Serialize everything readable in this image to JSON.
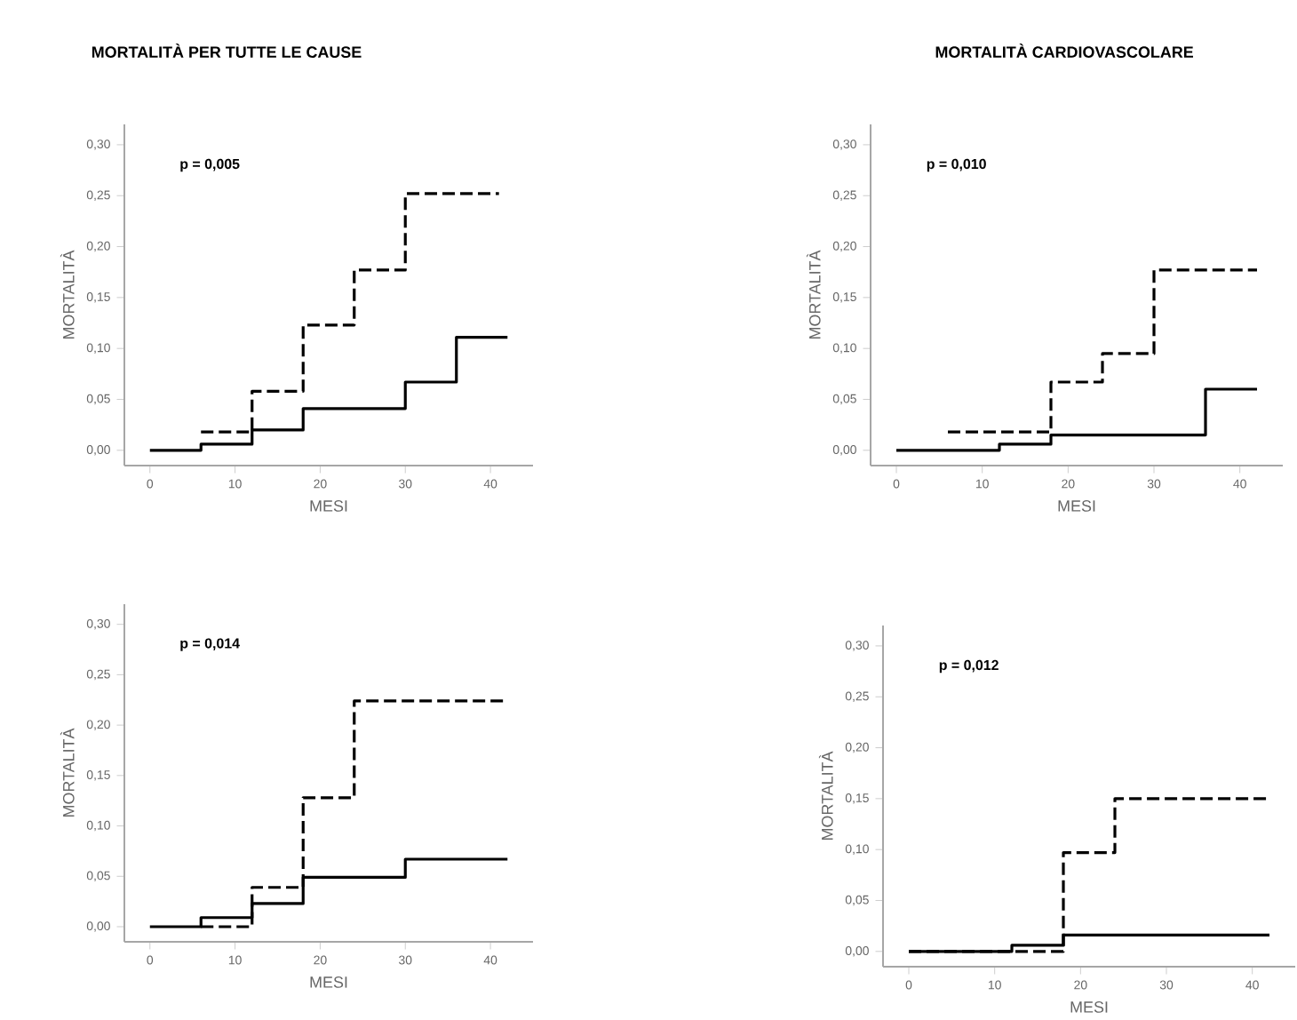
{
  "chart_data": [
    {
      "type": "step",
      "title": "MORTALITÀ PER TUTTE LE CAUSE",
      "xlabel": "MESI",
      "ylabel": "MORTALITÀ",
      "annotations": [
        "p = 0,005"
      ],
      "xlim": [
        -3,
        45
      ],
      "ylim": [
        -0.015,
        0.32
      ],
      "xticks": [
        0,
        10,
        20,
        30,
        40
      ],
      "yticks": [
        {
          "value": 0,
          "label": "0,00"
        },
        {
          "value": 0.05,
          "label": "0,05"
        },
        {
          "value": 0.1,
          "label": "0,10"
        },
        {
          "value": 0.15,
          "label": "0,15"
        },
        {
          "value": 0.2,
          "label": "0,20"
        },
        {
          "value": 0.25,
          "label": "0,25"
        },
        {
          "value": 0.3,
          "label": "0,30"
        }
      ],
      "grid": false,
      "series": [
        {
          "color": "#000000",
          "line_style": "dashed",
          "x": [
            6,
            12,
            18,
            24,
            30,
            41
          ],
          "values": [
            0.018,
            0.058,
            0.123,
            0.177,
            0.252,
            0.252
          ]
        },
        {
          "color": "#000000",
          "line_style": "solid",
          "x": [
            0,
            6,
            12,
            18,
            30,
            36,
            42
          ],
          "values": [
            0,
            0.006,
            0.02,
            0.041,
            0.067,
            0.111,
            0.111
          ]
        }
      ]
    },
    {
      "type": "step",
      "title": "MORTALITÀ CARDIOVASCOLARE",
      "xlabel": "MESI",
      "ylabel": "MORTALITÀ",
      "annotations": [
        "p = 0,010"
      ],
      "xlim": [
        -3,
        45
      ],
      "ylim": [
        -0.015,
        0.32
      ],
      "xticks": [
        0,
        10,
        20,
        30,
        40
      ],
      "yticks": [
        {
          "value": 0,
          "label": "0,00"
        },
        {
          "value": 0.05,
          "label": "0,05"
        },
        {
          "value": 0.1,
          "label": "0,10"
        },
        {
          "value": 0.15,
          "label": "0,15"
        },
        {
          "value": 0.2,
          "label": "0,20"
        },
        {
          "value": 0.25,
          "label": "0,25"
        },
        {
          "value": 0.3,
          "label": "0,30"
        }
      ],
      "grid": false,
      "series": [
        {
          "color": "#000000",
          "line_style": "dashed",
          "x": [
            6,
            18,
            24,
            30,
            42
          ],
          "values": [
            0.018,
            0.067,
            0.095,
            0.177,
            0.177
          ]
        },
        {
          "color": "#000000",
          "line_style": "solid",
          "x": [
            0,
            12,
            18,
            36,
            42
          ],
          "values": [
            0,
            0.006,
            0.015,
            0.06,
            0.06
          ]
        }
      ]
    },
    {
      "type": "step",
      "xlabel": "MESI",
      "ylabel": "MORTALITÀ",
      "annotations": [
        "p = 0,014"
      ],
      "xlim": [
        -3,
        45
      ],
      "ylim": [
        -0.015,
        0.32
      ],
      "xticks": [
        0,
        10,
        20,
        30,
        40
      ],
      "yticks": [
        {
          "value": 0,
          "label": "0,00"
        },
        {
          "value": 0.05,
          "label": "0,05"
        },
        {
          "value": 0.1,
          "label": "0,10"
        },
        {
          "value": 0.15,
          "label": "0,15"
        },
        {
          "value": 0.2,
          "label": "0,20"
        },
        {
          "value": 0.25,
          "label": "0,25"
        },
        {
          "value": 0.3,
          "label": "0,30"
        }
      ],
      "grid": false,
      "series": [
        {
          "color": "#000000",
          "line_style": "dashed",
          "x": [
            6,
            12,
            18,
            24,
            42
          ],
          "values": [
            0,
            0.039,
            0.128,
            0.224,
            0.224
          ]
        },
        {
          "color": "#000000",
          "line_style": "solid",
          "x": [
            0,
            6,
            12,
            18,
            30,
            42
          ],
          "values": [
            0,
            0.009,
            0.023,
            0.049,
            0.067,
            0.067
          ]
        }
      ]
    },
    {
      "type": "step",
      "xlabel": "MESI",
      "ylabel": "MORTALITÀ",
      "annotations": [
        "p = 0,012"
      ],
      "xlim": [
        -3,
        45
      ],
      "ylim": [
        -0.015,
        0.32
      ],
      "xticks": [
        0,
        10,
        20,
        30,
        40
      ],
      "yticks": [
        {
          "value": 0,
          "label": "0,00"
        },
        {
          "value": 0.05,
          "label": "0,05"
        },
        {
          "value": 0.1,
          "label": "0,10"
        },
        {
          "value": 0.15,
          "label": "0,15"
        },
        {
          "value": 0.2,
          "label": "0,20"
        },
        {
          "value": 0.25,
          "label": "0,25"
        },
        {
          "value": 0.3,
          "label": "0,30"
        }
      ],
      "grid": false,
      "series": [
        {
          "color": "#000000",
          "line_style": "dashed",
          "x": [
            0,
            18,
            24,
            42
          ],
          "values": [
            0,
            0.097,
            0.15,
            0.15
          ]
        },
        {
          "color": "#000000",
          "line_style": "solid",
          "x": [
            0,
            12,
            18,
            42
          ],
          "values": [
            0,
            0.006,
            0.016,
            0.016
          ]
        }
      ]
    }
  ]
}
